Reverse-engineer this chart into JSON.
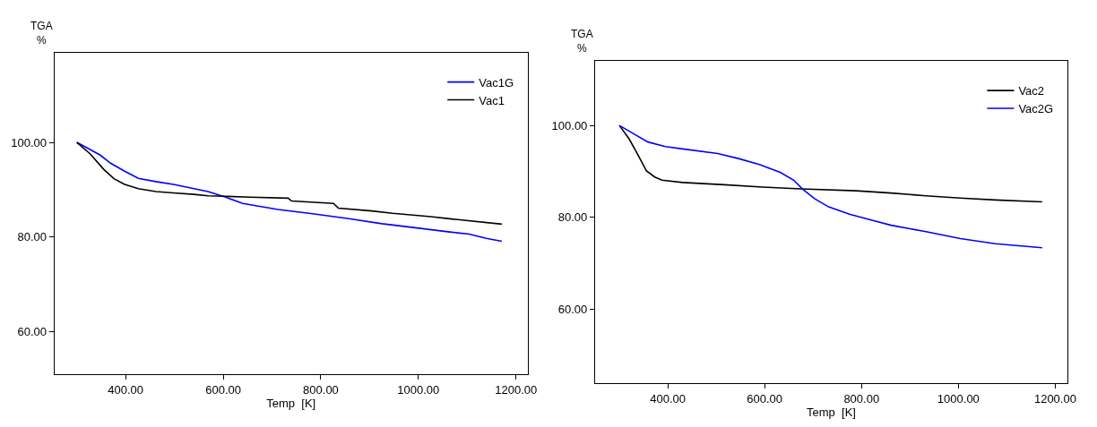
{
  "chart_data": [
    {
      "type": "line",
      "xlabel": "Temp  [K]",
      "ylabel": "TGA\n%",
      "xlim": [
        254,
        1224
      ],
      "ylim": [
        51,
        119
      ],
      "xticks": [
        {
          "value": 400,
          "label": "400.00"
        },
        {
          "value": 600,
          "label": "600.00"
        },
        {
          "value": 800,
          "label": "800.00"
        },
        {
          "value": 1000,
          "label": "1000.00"
        },
        {
          "value": 1200,
          "label": "1200.00"
        }
      ],
      "yticks": [
        {
          "value": 60,
          "label": "60.00"
        },
        {
          "value": 80,
          "label": "80.00"
        },
        {
          "value": 100,
          "label": "100.00"
        }
      ],
      "grid": false,
      "legend": "top right",
      "marker": "none",
      "line_style": "solid",
      "series": [
        {
          "name": "Vac1G",
          "color": "#0000ff",
          "x": [
            300,
            348,
            369,
            398,
            426,
            462,
            498,
            569,
            605,
            640,
            712,
            783,
            854,
            925,
            997,
            1068,
            1104,
            1139,
            1171
          ],
          "values": [
            100,
            97.3,
            95.6,
            93.9,
            92.4,
            91.7,
            91.1,
            89.6,
            88.4,
            87.1,
            85.8,
            84.9,
            83.9,
            82.8,
            81.9,
            81.0,
            80.6,
            79.7,
            79.1
          ]
        },
        {
          "name": "Vac1",
          "color": "#000000",
          "x": [
            300,
            327,
            355,
            376,
            398,
            426,
            462,
            498,
            540,
            569,
            605,
            655,
            733,
            740,
            826,
            836,
            904,
            947,
            1025,
            1068,
            1171
          ],
          "values": [
            100,
            97.6,
            94.3,
            92.3,
            91.1,
            90.2,
            89.6,
            89.3,
            89.0,
            88.7,
            88.6,
            88.4,
            88.2,
            87.6,
            87.1,
            86.1,
            85.5,
            85.0,
            84.3,
            83.8,
            82.7
          ]
        }
      ]
    },
    {
      "type": "line",
      "xlabel": "Temp  [K]",
      "ylabel": "TGA\n%",
      "xlim": [
        250,
        1225
      ],
      "ylim": [
        44,
        114
      ],
      "xticks": [
        {
          "value": 400,
          "label": "400.00"
        },
        {
          "value": 600,
          "label": "600.00"
        },
        {
          "value": 800,
          "label": "800.00"
        },
        {
          "value": 1000,
          "label": "1000.00"
        },
        {
          "value": 1200,
          "label": "1200.00"
        }
      ],
      "yticks": [
        {
          "value": 60,
          "label": "60.00"
        },
        {
          "value": 80,
          "label": "80.00"
        },
        {
          "value": 100,
          "label": "100.00"
        }
      ],
      "grid": false,
      "legend": "top right",
      "marker": "none",
      "line_style": "solid",
      "series": [
        {
          "name": "Vac2",
          "color": "#000000",
          "x": [
            300,
            320,
            338,
            356,
            373,
            388,
            431,
            517,
            596,
            675,
            789,
            861,
            933,
            1004,
            1076,
            1173
          ],
          "values": [
            100,
            97.1,
            93.7,
            90.1,
            88.8,
            88.1,
            87.6,
            87.1,
            86.6,
            86.2,
            85.8,
            85.3,
            84.7,
            84.2,
            83.8,
            83.4
          ]
        },
        {
          "name": "Vac2G",
          "color": "#0000ff",
          "x": [
            300,
            323,
            359,
            395,
            431,
            503,
            546,
            589,
            632,
            660,
            678,
            703,
            732,
            775,
            825,
            861,
            933,
            1004,
            1076,
            1173
          ],
          "values": [
            100,
            98.6,
            96.4,
            95.4,
            94.9,
            93.9,
            92.8,
            91.5,
            89.8,
            88.1,
            86.2,
            84.1,
            82.3,
            80.7,
            79.3,
            78.3,
            76.9,
            75.4,
            74.3,
            73.4
          ]
        }
      ]
    }
  ]
}
